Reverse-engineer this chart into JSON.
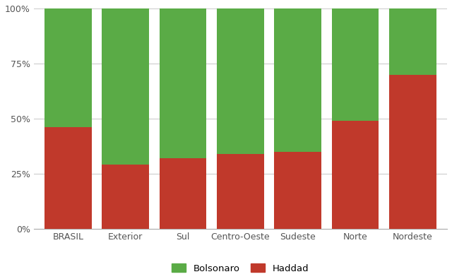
{
  "categories": [
    "BRASIL",
    "Exterior",
    "Sul",
    "Centro-Oeste",
    "Sudeste",
    "Norte",
    "Nordeste"
  ],
  "haddad": [
    46,
    29,
    32,
    34,
    35,
    49,
    70
  ],
  "bolsonaro": [
    54,
    71,
    68,
    66,
    65,
    51,
    30
  ],
  "color_bolsonaro": "#5aab46",
  "color_haddad": "#c0392b",
  "background_color": "#ffffff",
  "grid_color": "#cccccc",
  "legend_bolsonaro": "Bolsonaro",
  "legend_haddad": "Haddad",
  "yticks": [
    0,
    25,
    50,
    75,
    100
  ],
  "ytick_labels": [
    "0%",
    "25%",
    "50%",
    "75%",
    "100%"
  ],
  "ylim": [
    0,
    100
  ],
  "bar_width": 0.82
}
